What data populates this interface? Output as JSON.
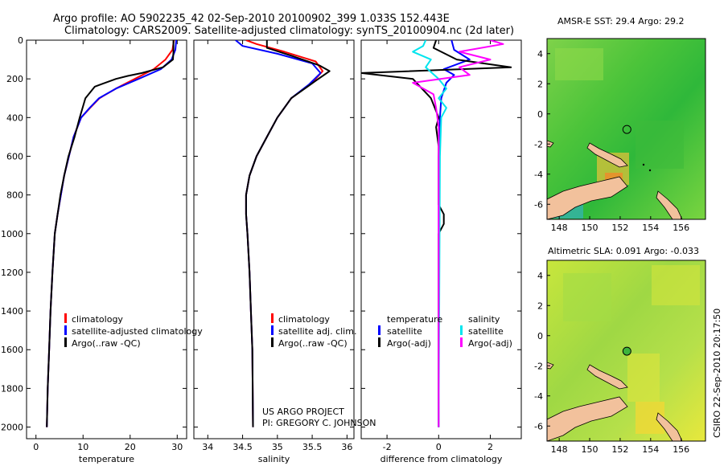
{
  "header": {
    "title_line1": "Argo profile: AO 5902235_42 02-Sep-2010 20100902_399 1.033S 152.443E",
    "title_line2": "Climatology: CARS2009. Satellite-adjusted climatology: synTS_20100904.nc (2d later)"
  },
  "side_label": "CSIRO 22-Sep-2010 20:17:50",
  "project_note": {
    "line1": "US ARGO PROJECT",
    "line2": "PI: GREGORY C. JOHNSON"
  },
  "colors": {
    "climatology": "#ff0000",
    "satellite": "#0000ff",
    "argo": "#000000",
    "salt_satellite": "#00e5ee",
    "salt_argo": "#ff00ff",
    "land": "#f2c19c"
  },
  "chart_data": [
    {
      "id": "temperature",
      "type": "line",
      "xlabel": "temperature",
      "ylabel": "",
      "xlim": [
        -2,
        32
      ],
      "ylim": [
        2060,
        0
      ],
      "xticks": [
        0,
        10,
        20,
        30
      ],
      "xtick_labels": [
        "0",
        "10",
        "20",
        "30"
      ],
      "yticks": [
        0,
        200,
        400,
        600,
        800,
        1000,
        1200,
        1400,
        1600,
        1800,
        2000
      ],
      "ytick_labels": [
        "0",
        "200",
        "400",
        "600",
        "800",
        "1000",
        "1200",
        "1400",
        "1600",
        "1800",
        "2000"
      ],
      "legend": [
        "climatology",
        "satellite-adjusted climatology",
        "Argo(..raw -QC)"
      ],
      "series": [
        {
          "name": "climatology",
          "color": "#ff0000",
          "x": [
            29.3,
            29.0,
            27.5,
            25.0,
            21.0,
            17.0,
            13.5,
            11.5,
            9.6,
            8.0,
            7.0,
            6.0,
            5.3,
            4.6,
            4.0,
            3.5,
            3.1,
            2.8,
            2.5,
            2.3
          ],
          "y": [
            0,
            50,
            100,
            150,
            200,
            250,
            300,
            350,
            400,
            500,
            600,
            700,
            800,
            900,
            1000,
            1200,
            1400,
            1600,
            1800,
            2000
          ]
        },
        {
          "name": "satellite-adjusted climatology",
          "color": "#0000ff",
          "x": [
            29.8,
            29.6,
            28.8,
            26.5,
            21.8,
            17.0,
            13.4,
            11.4,
            9.6,
            8.0,
            7.0,
            6.0,
            5.3,
            4.6,
            4.0,
            3.5,
            3.1,
            2.8,
            2.5,
            2.3
          ],
          "y": [
            0,
            50,
            100,
            150,
            200,
            250,
            300,
            350,
            400,
            500,
            600,
            700,
            800,
            900,
            1000,
            1200,
            1400,
            1600,
            1800,
            2000
          ]
        },
        {
          "name": "Argo(..raw -QC)",
          "color": "#000000",
          "x": [
            29.2,
            29.2,
            29.1,
            27.0,
            22.5,
            19.5,
            17.0,
            12.5,
            10.5,
            9.3,
            8.2,
            6.9,
            6.0,
            5.2,
            4.6,
            4.0,
            3.5,
            3.1,
            2.8,
            2.5,
            2.3
          ],
          "y": [
            0,
            60,
            100,
            140,
            170,
            185,
            200,
            240,
            300,
            400,
            500,
            600,
            700,
            800,
            900,
            1000,
            1200,
            1400,
            1600,
            1800,
            2000
          ]
        }
      ]
    },
    {
      "id": "salinity",
      "type": "line",
      "xlabel": "salinity",
      "ylabel": "",
      "xlim": [
        33.8,
        36.1
      ],
      "ylim": [
        2060,
        0
      ],
      "xticks": [
        34,
        34.5,
        35,
        35.5,
        36
      ],
      "xtick_labels": [
        "34",
        "34.5",
        "35",
        "35.5",
        "36"
      ],
      "legend": [
        "climatology",
        "satellite adj. clim.",
        "Argo(..raw -QC)"
      ],
      "series": [
        {
          "name": "climatology",
          "color": "#ff0000",
          "x": [
            34.55,
            34.7,
            35.1,
            35.55,
            35.65,
            35.5,
            35.2,
            35.0,
            34.85,
            34.7,
            34.6,
            34.55,
            34.55,
            34.57,
            34.6,
            34.62,
            34.64,
            34.65
          ],
          "y": [
            0,
            20,
            60,
            110,
            160,
            220,
            300,
            400,
            500,
            600,
            700,
            800,
            900,
            1000,
            1200,
            1400,
            1600,
            2000
          ]
        },
        {
          "name": "satellite adj. clim.",
          "color": "#0000ff",
          "x": [
            34.4,
            34.5,
            35.0,
            35.5,
            35.62,
            35.45,
            35.2,
            35.0,
            34.85,
            34.7,
            34.6,
            34.55,
            34.55,
            34.57,
            34.6,
            34.62,
            34.64,
            34.65
          ],
          "y": [
            0,
            30,
            70,
            120,
            170,
            230,
            300,
            400,
            500,
            600,
            700,
            800,
            900,
            1000,
            1200,
            1400,
            1600,
            2000
          ]
        },
        {
          "name": "Argo(..raw -QC)",
          "color": "#000000",
          "x": [
            34.85,
            34.85,
            35.2,
            35.6,
            35.75,
            35.55,
            35.2,
            35.0,
            34.85,
            34.7,
            34.6,
            34.55,
            34.55,
            34.57,
            34.6,
            34.62,
            34.64,
            34.65
          ],
          "y": [
            0,
            40,
            80,
            130,
            160,
            210,
            300,
            400,
            500,
            600,
            700,
            800,
            900,
            1000,
            1200,
            1400,
            1600,
            2000
          ]
        }
      ]
    },
    {
      "id": "difference",
      "type": "line",
      "xlabel": "difference from climatology",
      "ylabel": "",
      "xlim": [
        -3,
        3.2
      ],
      "ylim": [
        2060,
        0
      ],
      "xticks": [
        -2,
        0,
        2
      ],
      "xtick_labels": [
        "-2",
        "0",
        "2"
      ],
      "legend_groups": [
        {
          "header": "temperature",
          "entries": [
            "satellite",
            "Argo(-adj)"
          ]
        },
        {
          "header": "salinity",
          "entries": [
            "satellite",
            "Argo(-adj)"
          ]
        }
      ],
      "series": [
        {
          "name": "temperature satellite",
          "color": "#0000ff",
          "x": [
            0.5,
            0.6,
            1.2,
            0.6,
            0.2,
            0.6,
            0.3,
            0.1,
            0.05,
            0.0,
            0.0,
            0.0
          ],
          "y": [
            0,
            50,
            100,
            130,
            150,
            180,
            220,
            300,
            400,
            600,
            1000,
            2000
          ]
        },
        {
          "name": "temperature Argo(-adj)",
          "color": "#000000",
          "x": [
            -0.1,
            -0.2,
            0.7,
            2.8,
            -3.0,
            -1.0,
            -0.3,
            0.0,
            -0.1,
            0.0,
            0.0,
            0.2,
            0.2,
            0.0,
            0.0,
            0.0,
            0.0
          ],
          "y": [
            0,
            40,
            100,
            140,
            170,
            200,
            300,
            400,
            450,
            550,
            850,
            900,
            950,
            1000,
            1200,
            1600,
            2000
          ]
        },
        {
          "name": "salinity satellite",
          "color": "#00e5ee",
          "x": [
            -0.5,
            -0.6,
            -1.0,
            -0.3,
            -0.5,
            0.0,
            0.3,
            0.0,
            0.3,
            0.1,
            0.05,
            0.0
          ],
          "y": [
            0,
            30,
            60,
            100,
            140,
            200,
            250,
            300,
            350,
            400,
            600,
            2000
          ]
        },
        {
          "name": "salinity Argo(-adj)",
          "color": "#ff00ff",
          "x": [
            2.0,
            2.5,
            0.8,
            2.0,
            0.8,
            1.2,
            -1.0,
            -0.2,
            -0.1,
            0.0,
            0.0
          ],
          "y": [
            0,
            20,
            60,
            100,
            140,
            180,
            220,
            280,
            350,
            450,
            2000
          ]
        }
      ]
    }
  ],
  "maps": [
    {
      "id": "sst-map",
      "title": "AMSR-E SST: 29.4 Argo: 29.2",
      "xticks": [
        148,
        150,
        152,
        154,
        156
      ],
      "yticks": [
        4,
        2,
        0,
        -2,
        -4,
        -6
      ],
      "xlim": [
        147.2,
        157.6
      ],
      "ylim": [
        -7.0,
        5.0
      ],
      "argo_lon": 152.44,
      "argo_lat": -1.03
    },
    {
      "id": "sla-map",
      "title": "Altimetric SLA: 0.091 Argo: -0.033",
      "xticks": [
        148,
        150,
        152,
        154,
        156
      ],
      "yticks": [
        4,
        2,
        0,
        -2,
        -4,
        -6
      ],
      "xlim": [
        147.2,
        157.6
      ],
      "ylim": [
        -7.0,
        5.0
      ],
      "argo_lon": 152.44,
      "argo_lat": -1.03
    }
  ]
}
